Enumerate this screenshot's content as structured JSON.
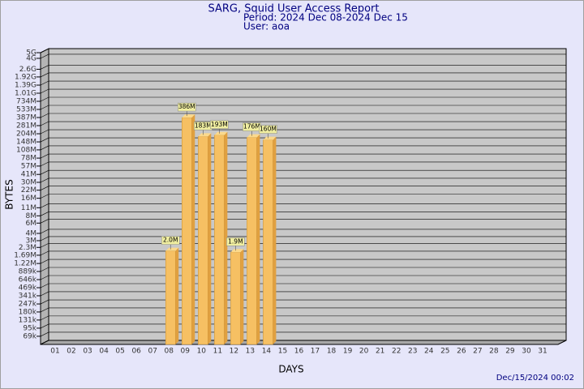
{
  "chart_data": {
    "type": "bar",
    "title": "SARG, Squid User Access Report",
    "subtitle": [
      "Period: 2024 Dec 08-2024 Dec 15",
      "User: aoa"
    ],
    "y_label": "BYTES",
    "x_label": "DAYS",
    "footer": "Dec/15/2024 00:02",
    "log_scale": true,
    "grid": true,
    "color": "#f6c063",
    "categories": [
      "01",
      "02",
      "03",
      "04",
      "05",
      "06",
      "07",
      "08",
      "09",
      "10",
      "11",
      "12",
      "13",
      "14",
      "15",
      "16",
      "17",
      "18",
      "19",
      "20",
      "21",
      "22",
      "23",
      "24",
      "25",
      "26",
      "27",
      "28",
      "29",
      "30",
      "31"
    ],
    "values": [
      null,
      null,
      null,
      null,
      null,
      null,
      null,
      2000000,
      386000000,
      183000000,
      193000000,
      1900000,
      176000000,
      160000000,
      null,
      null,
      null,
      null,
      null,
      null,
      null,
      null,
      null,
      null,
      null,
      null,
      null,
      null,
      null,
      null,
      null
    ],
    "value_labels": [
      null,
      null,
      null,
      null,
      null,
      null,
      null,
      "2.0M",
      "386M",
      "183M",
      "193M",
      "1.9M",
      "176M",
      "160M",
      null,
      null,
      null,
      null,
      null,
      null,
      null,
      null,
      null,
      null,
      null,
      null,
      null,
      null,
      null,
      null,
      null
    ],
    "ylim": [
      50000,
      5000000000
    ],
    "yticks": [
      {
        "value": 5000000000,
        "label": "5G"
      },
      {
        "value": 4000000000,
        "label": "4G"
      },
      {
        "value": 2600000000,
        "label": "2.6G"
      },
      {
        "value": 1920000000,
        "label": "1.92G"
      },
      {
        "value": 1390000000,
        "label": "1.39G"
      },
      {
        "value": 1010000000,
        "label": "1.01G"
      },
      {
        "value": 734000000,
        "label": "734M"
      },
      {
        "value": 533000000,
        "label": "533M"
      },
      {
        "value": 387000000,
        "label": "387M"
      },
      {
        "value": 281000000,
        "label": "281M"
      },
      {
        "value": 204000000,
        "label": "204M"
      },
      {
        "value": 148000000,
        "label": "148M"
      },
      {
        "value": 108000000,
        "label": "108M"
      },
      {
        "value": 78000000,
        "label": "78M"
      },
      {
        "value": 57000000,
        "label": "57M"
      },
      {
        "value": 41000000,
        "label": "41M"
      },
      {
        "value": 30000000,
        "label": "30M"
      },
      {
        "value": 22000000,
        "label": "22M"
      },
      {
        "value": 16000000,
        "label": "16M"
      },
      {
        "value": 11000000,
        "label": "11M"
      },
      {
        "value": 8000000,
        "label": "8M"
      },
      {
        "value": 6000000,
        "label": "6M"
      },
      {
        "value": 4000000,
        "label": "4M"
      },
      {
        "value": 3000000,
        "label": "3M"
      },
      {
        "value": 2300000,
        "label": "2.3M"
      },
      {
        "value": 1690000,
        "label": "1.69M"
      },
      {
        "value": 1220000,
        "label": "1.22M"
      },
      {
        "value": 889000,
        "label": "889k"
      },
      {
        "value": 646000,
        "label": "646k"
      },
      {
        "value": 469000,
        "label": "469k"
      },
      {
        "value": 341000,
        "label": "341k"
      },
      {
        "value": 247000,
        "label": "247k"
      },
      {
        "value": 180000,
        "label": "180k"
      },
      {
        "value": 131000,
        "label": "131k"
      },
      {
        "value": 95000,
        "label": "95k"
      },
      {
        "value": 69000,
        "label": "69k"
      }
    ]
  }
}
